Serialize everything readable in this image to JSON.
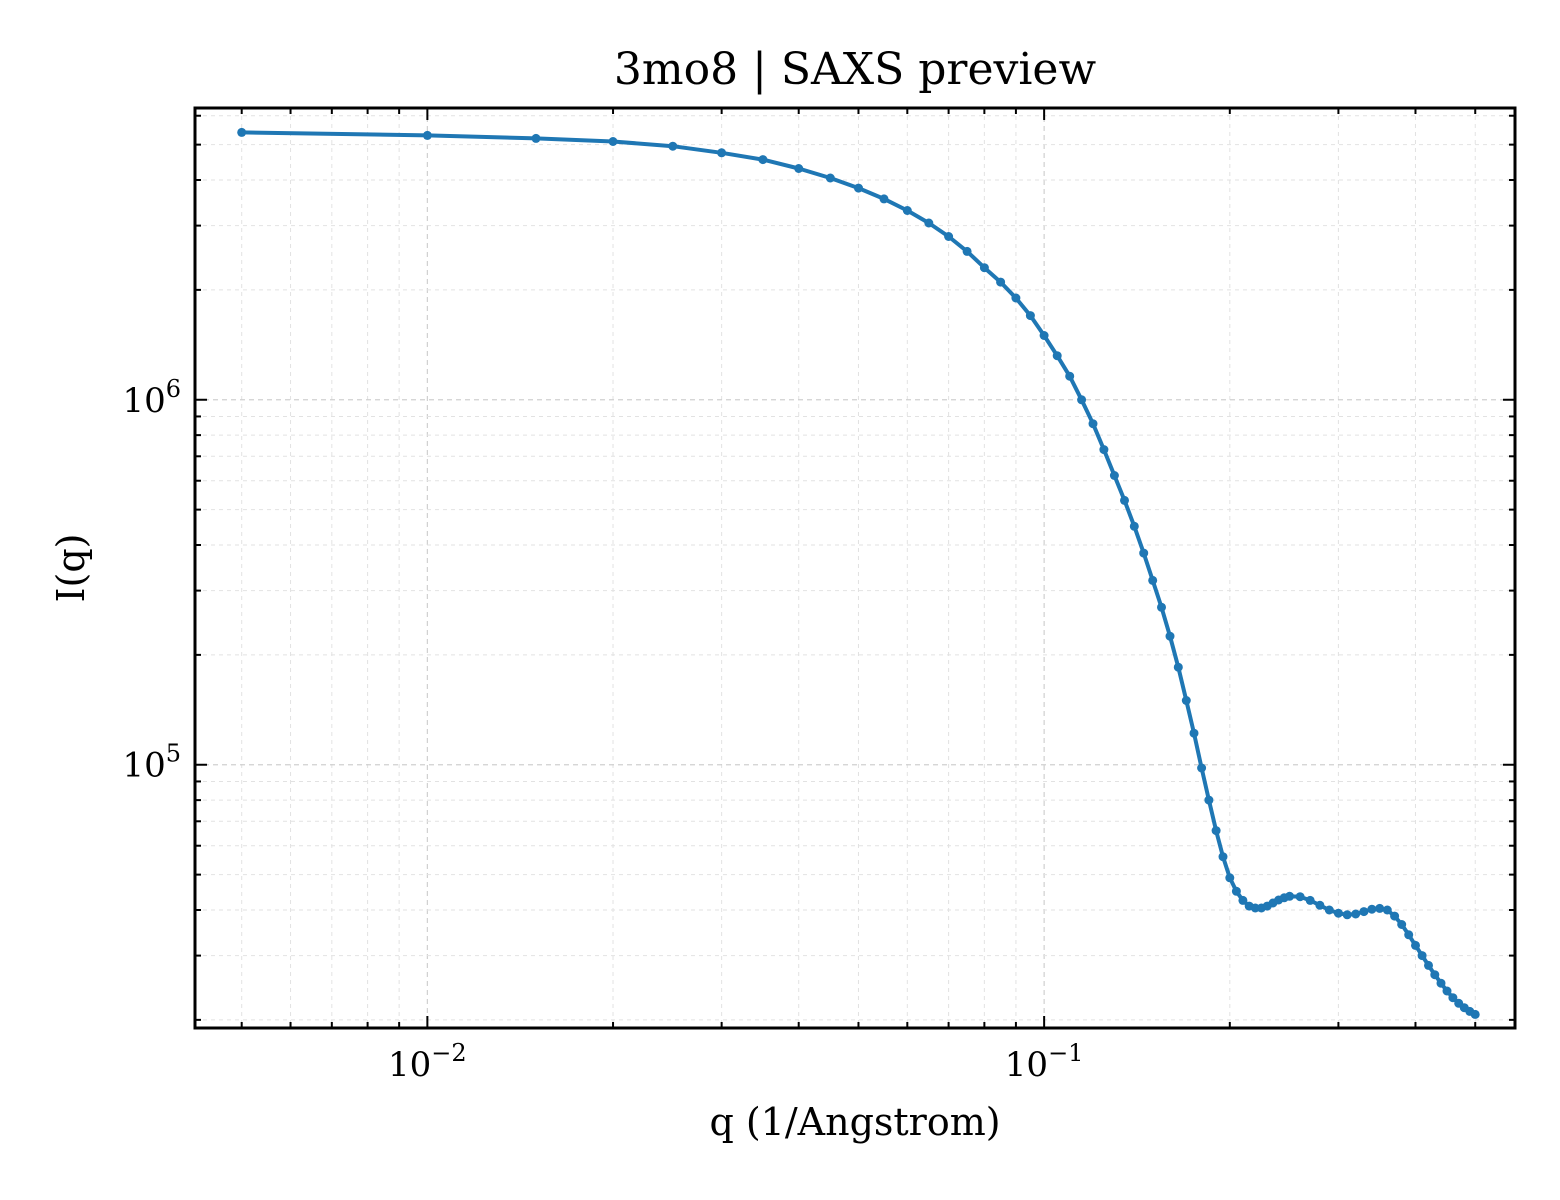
{
  "chart_data": {
    "type": "line",
    "title": "3mo8 | SAXS preview",
    "xlabel": "q (1/Angstrom)",
    "ylabel": "I(q)",
    "xscale": "log",
    "yscale": "log",
    "xlim": [
      0.0042,
      0.58
    ],
    "ylim": [
      19000,
      6300000
    ],
    "x_ticks": [
      {
        "value": 0.01,
        "base": "10",
        "exp": "−2"
      },
      {
        "value": 0.1,
        "base": "10",
        "exp": "−1"
      }
    ],
    "y_ticks": [
      {
        "value": 100000,
        "base": "10",
        "exp": "5"
      },
      {
        "value": 1000000,
        "base": "10",
        "exp": "6"
      }
    ],
    "grid": true,
    "legend": "none",
    "color": "#1f77b4",
    "series": [
      {
        "x": [
          0.005,
          0.01,
          0.015,
          0.02,
          0.025,
          0.03,
          0.035,
          0.04,
          0.045,
          0.05,
          0.055,
          0.06,
          0.065,
          0.07,
          0.075,
          0.08,
          0.085,
          0.09,
          0.095,
          0.1,
          0.105,
          0.11,
          0.115,
          0.12,
          0.125,
          0.13,
          0.135,
          0.14,
          0.145,
          0.15,
          0.155,
          0.16,
          0.165,
          0.17,
          0.175,
          0.18,
          0.185,
          0.19,
          0.195,
          0.2,
          0.205,
          0.21,
          0.215,
          0.22,
          0.225,
          0.23,
          0.235,
          0.24,
          0.245,
          0.25,
          0.26,
          0.27,
          0.28,
          0.29,
          0.3,
          0.31,
          0.32,
          0.33,
          0.34,
          0.35,
          0.36,
          0.37,
          0.38,
          0.39,
          0.4,
          0.41,
          0.42,
          0.43,
          0.44,
          0.45,
          0.46,
          0.47,
          0.48,
          0.49,
          0.5
        ],
        "y": [
          5400000,
          5300000,
          5200000,
          5100000,
          4950000,
          4750000,
          4550000,
          4300000,
          4050000,
          3800000,
          3550000,
          3300000,
          3050000,
          2800000,
          2550000,
          2300000,
          2100000,
          1900000,
          1700000,
          1500000,
          1320000,
          1160000,
          1000000,
          860000,
          730000,
          620000,
          530000,
          450000,
          380000,
          320000,
          270000,
          225000,
          185000,
          150000,
          122000,
          98000,
          80000,
          66000,
          56000,
          49000,
          45000,
          42500,
          41000,
          40500,
          40500,
          41000,
          41800,
          42600,
          43200,
          43600,
          43500,
          42500,
          41200,
          40000,
          39200,
          38800,
          39000,
          39600,
          40200,
          40400,
          40000,
          38500,
          36500,
          34200,
          32000,
          30000,
          28200,
          26600,
          25200,
          24000,
          23000,
          22200,
          21600,
          21100,
          20700
        ]
      }
    ]
  }
}
